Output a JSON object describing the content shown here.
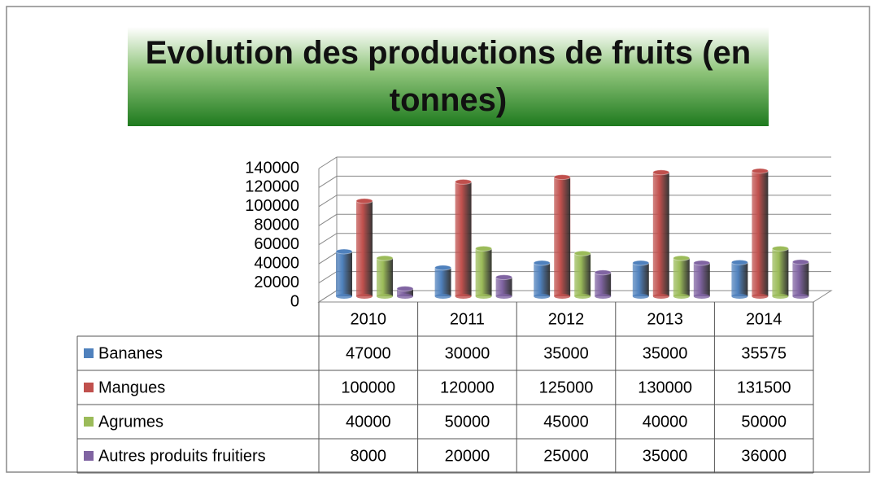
{
  "chart_data": {
    "type": "bar3d",
    "title": "Evolution des productions de fruits (en tonnes)",
    "categories": [
      "2010",
      "2011",
      "2012",
      "2013",
      "2014"
    ],
    "series": [
      {
        "name": "Bananes",
        "color": "#4f81bd",
        "values": [
          47000,
          30000,
          35000,
          35000,
          35575
        ]
      },
      {
        "name": "Mangues",
        "color": "#c0504d",
        "values": [
          100000,
          120000,
          125000,
          130000,
          131500
        ]
      },
      {
        "name": "Agrumes",
        "color": "#9bbb59",
        "values": [
          40000,
          50000,
          45000,
          40000,
          50000
        ]
      },
      {
        "name": "Autres produits fruitiers",
        "color": "#8064a2",
        "values": [
          8000,
          20000,
          25000,
          35000,
          36000
        ]
      }
    ],
    "ylim": [
      0,
      140000
    ],
    "yticks": [
      0,
      20000,
      40000,
      60000,
      80000,
      100000,
      120000,
      140000
    ],
    "grid": true
  }
}
